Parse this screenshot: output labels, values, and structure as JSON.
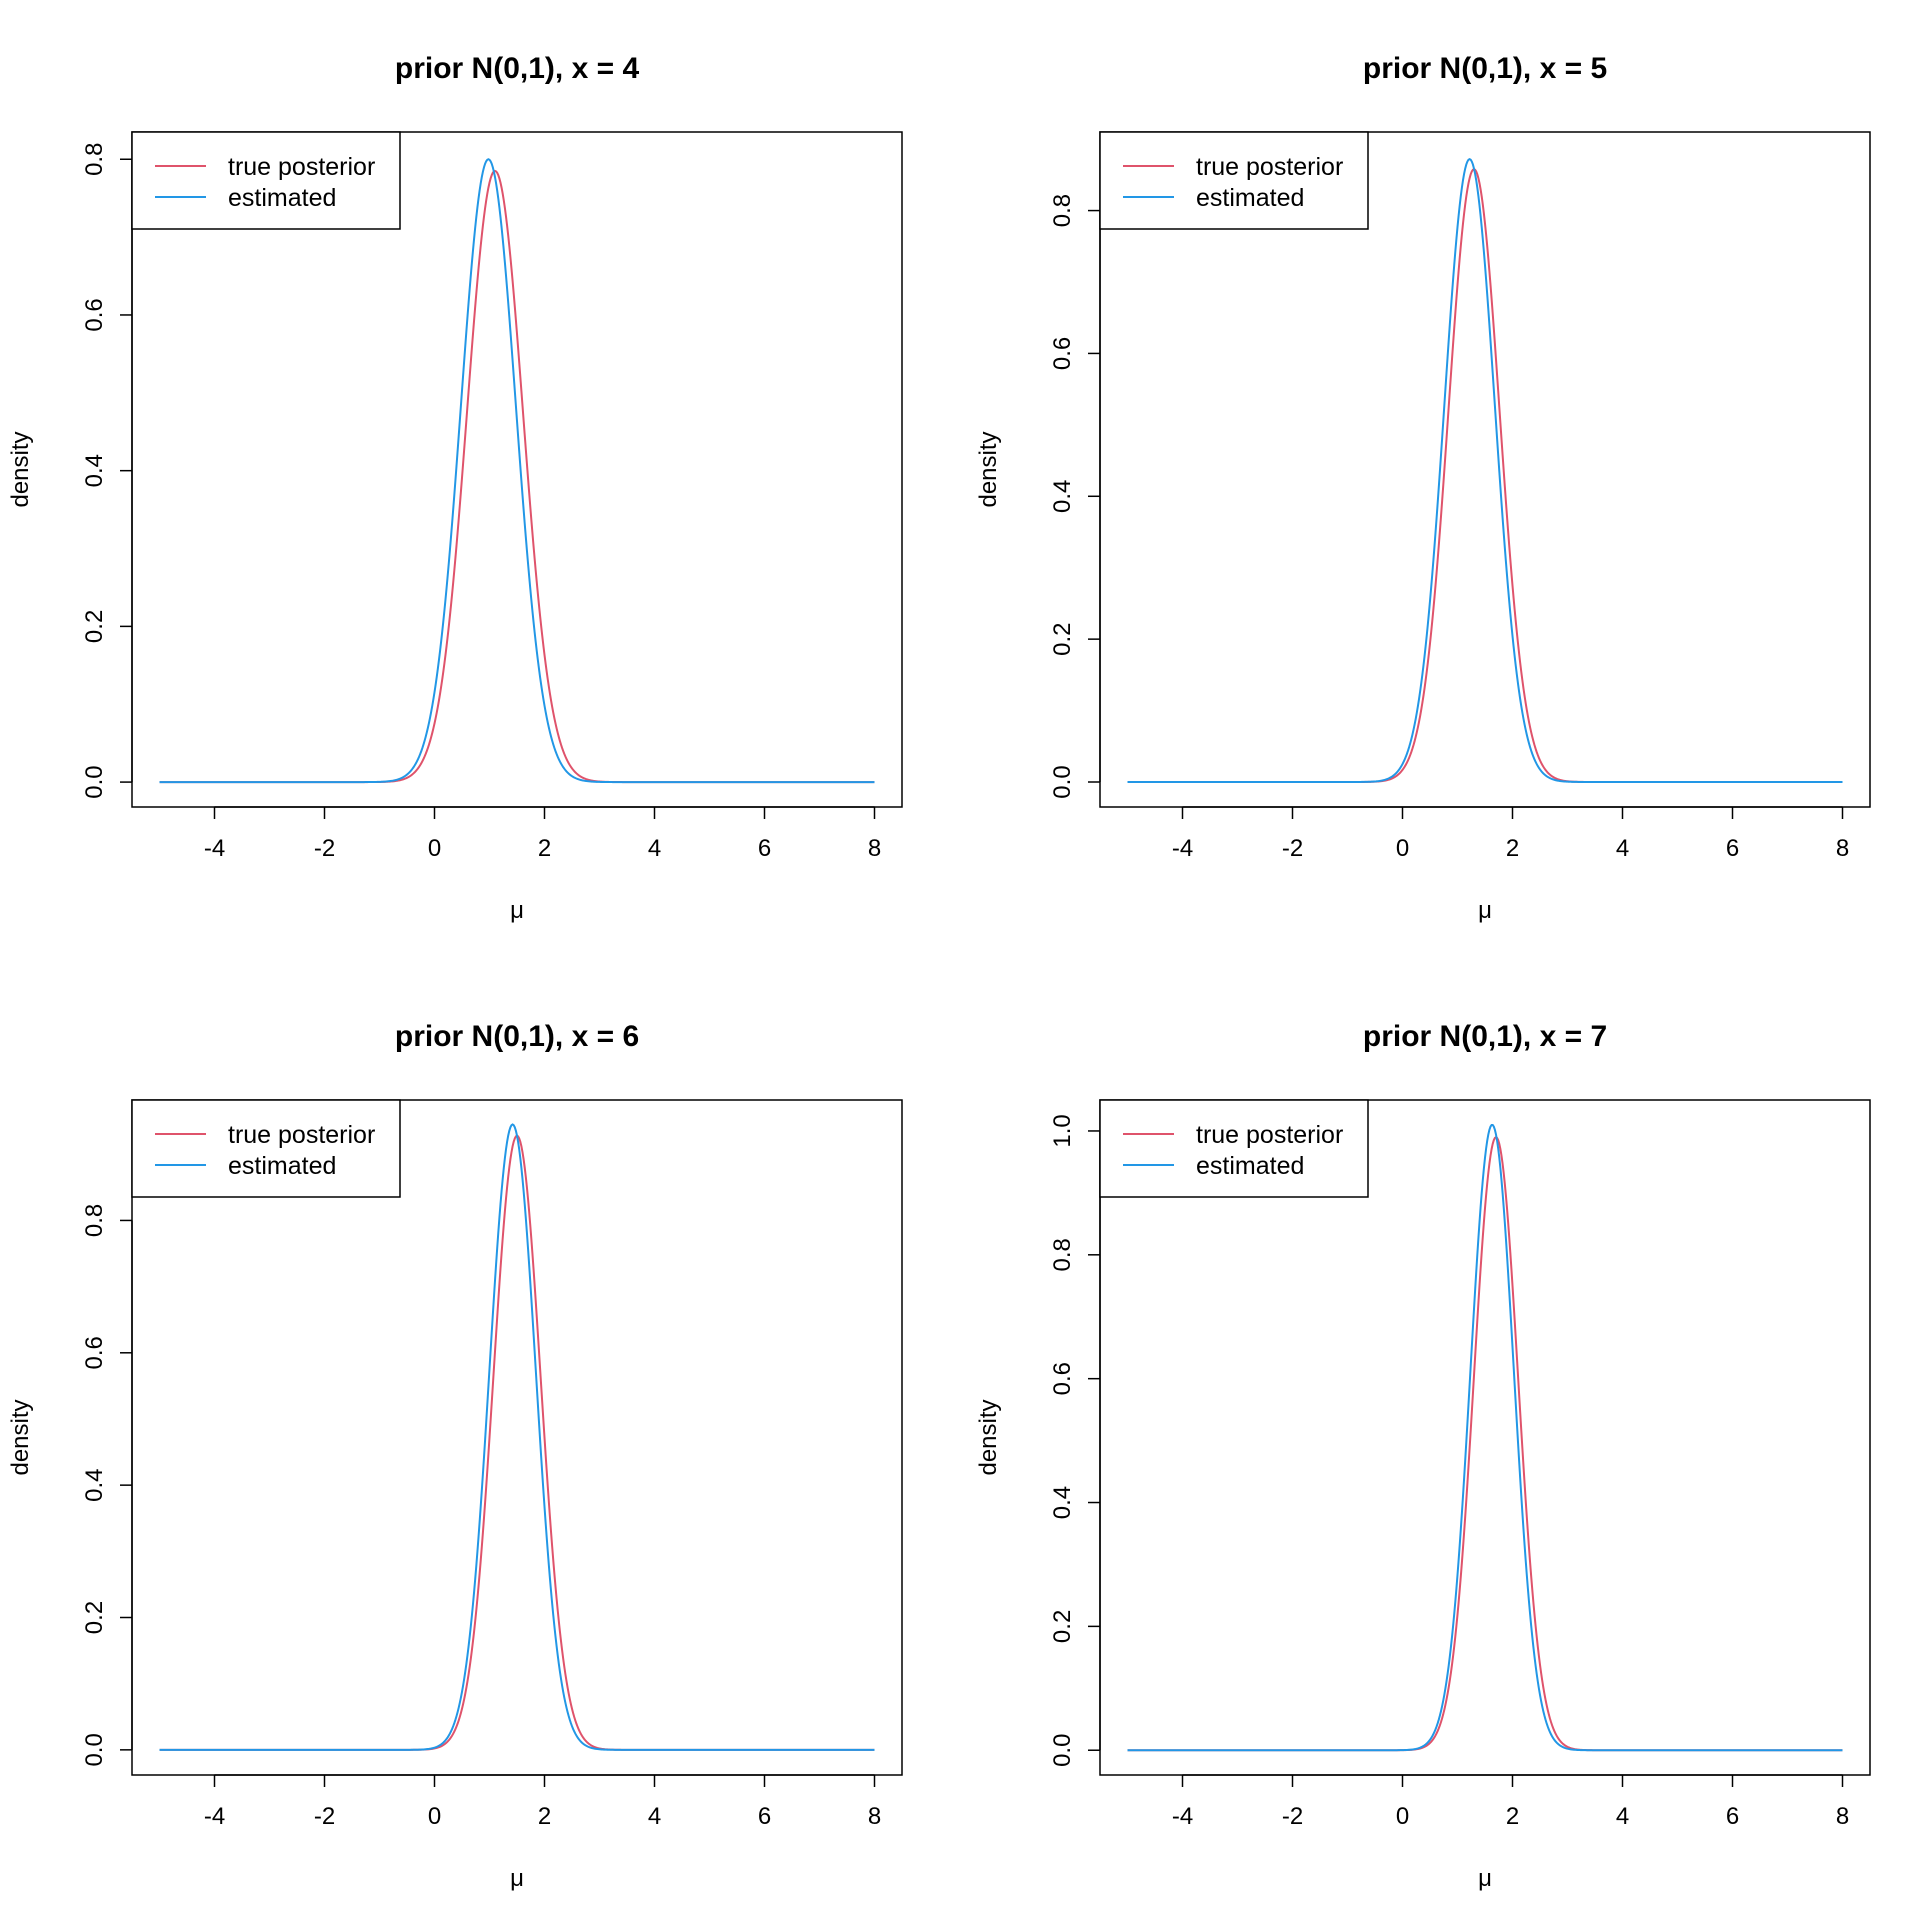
{
  "colors": {
    "true_posterior": "#DF536B",
    "estimated": "#2297E6",
    "axis": "#000000",
    "background": "#FFFFFF"
  },
  "chart_data": [
    {
      "type": "line",
      "title": "prior N(0,1), x = 4",
      "xlabel": "μ",
      "ylabel": "density",
      "xlim": [
        -5.5,
        8.5
      ],
      "ylim": [
        -0.032,
        0.835
      ],
      "xticks": [
        -4,
        -2,
        0,
        2,
        4,
        6,
        8
      ],
      "xtick_labels": [
        "-4",
        "-2",
        "0",
        "2",
        "4",
        "6",
        "8"
      ],
      "yticks": [
        0,
        0.2,
        0.4,
        0.6,
        0.8
      ],
      "ytick_labels": [
        "0.0",
        "0.2",
        "0.4",
        "0.6",
        "0.8"
      ],
      "x_range": [
        -5,
        8
      ],
      "legend": {
        "position": "top-left"
      },
      "series": [
        {
          "name": "true posterior",
          "color": "#DF536B",
          "shape": "normal",
          "mean": 1.1,
          "sd": 0.508,
          "peak": 0.785
        },
        {
          "name": "estimated",
          "color": "#2297E6",
          "shape": "normal",
          "mean": 0.98,
          "sd": 0.498,
          "peak": 0.8
        }
      ]
    },
    {
      "type": "line",
      "title": "prior N(0,1), x = 5",
      "xlabel": "μ",
      "ylabel": "density",
      "xlim": [
        -5.5,
        8.5
      ],
      "ylim": [
        -0.035,
        0.91
      ],
      "xticks": [
        -4,
        -2,
        0,
        2,
        4,
        6,
        8
      ],
      "xtick_labels": [
        "-4",
        "-2",
        "0",
        "2",
        "4",
        "6",
        "8"
      ],
      "yticks": [
        0,
        0.2,
        0.4,
        0.6,
        0.8
      ],
      "ytick_labels": [
        "0.0",
        "0.2",
        "0.4",
        "0.6",
        "0.8"
      ],
      "x_range": [
        -5,
        8
      ],
      "legend": {
        "position": "top-left"
      },
      "series": [
        {
          "name": "true posterior",
          "color": "#DF536B",
          "shape": "normal",
          "mean": 1.3,
          "sd": 0.464,
          "peak": 0.858
        },
        {
          "name": "estimated",
          "color": "#2297E6",
          "shape": "normal",
          "mean": 1.22,
          "sd": 0.458,
          "peak": 0.872
        }
      ]
    },
    {
      "type": "line",
      "title": "prior N(0,1), x = 6",
      "xlabel": "μ",
      "ylabel": "density",
      "xlim": [
        -5.5,
        8.5
      ],
      "ylim": [
        -0.038,
        0.982
      ],
      "xticks": [
        -4,
        -2,
        0,
        2,
        4,
        6,
        8
      ],
      "xtick_labels": [
        "-4",
        "-2",
        "0",
        "2",
        "4",
        "6",
        "8"
      ],
      "yticks": [
        0,
        0.2,
        0.4,
        0.6,
        0.8
      ],
      "ytick_labels": [
        "0.0",
        "0.2",
        "0.4",
        "0.6",
        "0.8"
      ],
      "x_range": [
        -5,
        8
      ],
      "legend": {
        "position": "top-left"
      },
      "series": [
        {
          "name": "true posterior",
          "color": "#DF536B",
          "shape": "normal",
          "mean": 1.5,
          "sd": 0.43,
          "peak": 0.928
        },
        {
          "name": "estimated",
          "color": "#2297E6",
          "shape": "normal",
          "mean": 1.42,
          "sd": 0.422,
          "peak": 0.945
        }
      ]
    },
    {
      "type": "line",
      "title": "prior N(0,1), x = 7",
      "xlabel": "μ",
      "ylabel": "density",
      "xlim": [
        -5.5,
        8.5
      ],
      "ylim": [
        -0.04,
        1.05
      ],
      "xticks": [
        -4,
        -2,
        0,
        2,
        4,
        6,
        8
      ],
      "xtick_labels": [
        "-4",
        "-2",
        "0",
        "2",
        "4",
        "6",
        "8"
      ],
      "yticks": [
        0,
        0.2,
        0.4,
        0.6,
        0.8,
        1.0
      ],
      "ytick_labels": [
        "0.0",
        "0.2",
        "0.4",
        "0.6",
        "0.8",
        "1.0"
      ],
      "x_range": [
        -5,
        8
      ],
      "legend": {
        "position": "top-left"
      },
      "series": [
        {
          "name": "true posterior",
          "color": "#DF536B",
          "shape": "normal",
          "mean": 1.7,
          "sd": 0.403,
          "peak": 0.99
        },
        {
          "name": "estimated",
          "color": "#2297E6",
          "shape": "normal",
          "mean": 1.63,
          "sd": 0.395,
          "peak": 1.01
        }
      ]
    }
  ]
}
